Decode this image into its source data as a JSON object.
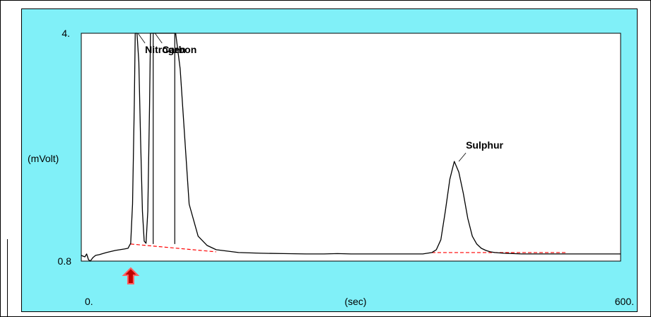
{
  "chart_data": {
    "type": "line",
    "title": "",
    "xlabel": "(sec)",
    "ylabel": "(mVolt)",
    "xlim": [
      0,
      600
    ],
    "ylim": [
      0.8,
      4
    ],
    "x_tick_labels": [
      "0.",
      "600."
    ],
    "y_tick_labels": [
      "4.",
      "0.8"
    ],
    "series": [
      {
        "x": [
          0,
          2,
          4,
          6,
          8,
          10,
          13,
          16,
          20,
          28,
          38,
          48,
          52,
          55,
          57,
          59,
          60,
          61,
          62,
          64,
          66,
          68,
          70,
          72,
          74,
          76,
          77,
          78,
          79,
          80,
          82,
          84,
          87,
          90,
          93,
          96,
          100,
          105,
          110,
          120,
          130,
          140,
          150,
          175,
          200,
          225,
          250,
          270,
          285,
          300,
          340,
          380,
          390,
          395,
          400,
          405,
          410,
          415,
          420,
          425,
          430,
          435,
          440,
          445,
          450,
          455,
          460,
          465,
          470,
          480,
          490,
          500,
          520,
          540,
          560,
          580,
          600
        ],
        "values": [
          0.88,
          0.87,
          0.86,
          0.9,
          0.82,
          0.8,
          0.85,
          0.88,
          0.89,
          0.92,
          0.95,
          0.97,
          0.98,
          1.05,
          1.6,
          3.0,
          4.0,
          4.0,
          4.0,
          3.6,
          2.5,
          1.5,
          1.08,
          1.05,
          1.5,
          3.0,
          4.0,
          4.0,
          4.0,
          4.0,
          4.0,
          4.0,
          4.0,
          4.0,
          4.0,
          4.0,
          4.0,
          4.0,
          3.5,
          1.6,
          1.15,
          1.02,
          0.96,
          0.92,
          0.91,
          0.905,
          0.9,
          0.9,
          0.905,
          0.9,
          0.9,
          0.9,
          0.92,
          0.96,
          1.1,
          1.5,
          1.95,
          2.2,
          2.05,
          1.75,
          1.4,
          1.15,
          1.04,
          0.98,
          0.95,
          0.93,
          0.92,
          0.915,
          0.91,
          0.905,
          0.9,
          0.9,
          0.9,
          0.9,
          0.9,
          0.9,
          0.9
        ]
      }
    ],
    "peak_segments": [
      {
        "x_start": 55,
        "y_start": 1.04,
        "x_end": 150,
        "y_end": 0.93
      },
      {
        "x_start": 390,
        "y_start": 0.92,
        "x_end": 540,
        "y_end": 0.92
      }
    ],
    "cut_markers": [
      {
        "x": 80
      },
      {
        "x": 104
      }
    ],
    "annotations": [
      {
        "text": "Nitrogen",
        "x": 63,
        "y": 4.0
      },
      {
        "text": "Carbon",
        "x": 82,
        "y": 4.0
      },
      {
        "text": "Sulphur",
        "x": 420,
        "y": 2.2
      }
    ],
    "injection_marker_x": 55,
    "colors": {
      "background": "#80f0f8",
      "plot_area": "#ffffff",
      "trace": "#000000",
      "baseline": "#ff0000",
      "marker_fill": "#c00000",
      "marker_stroke": "#ff6060"
    }
  }
}
